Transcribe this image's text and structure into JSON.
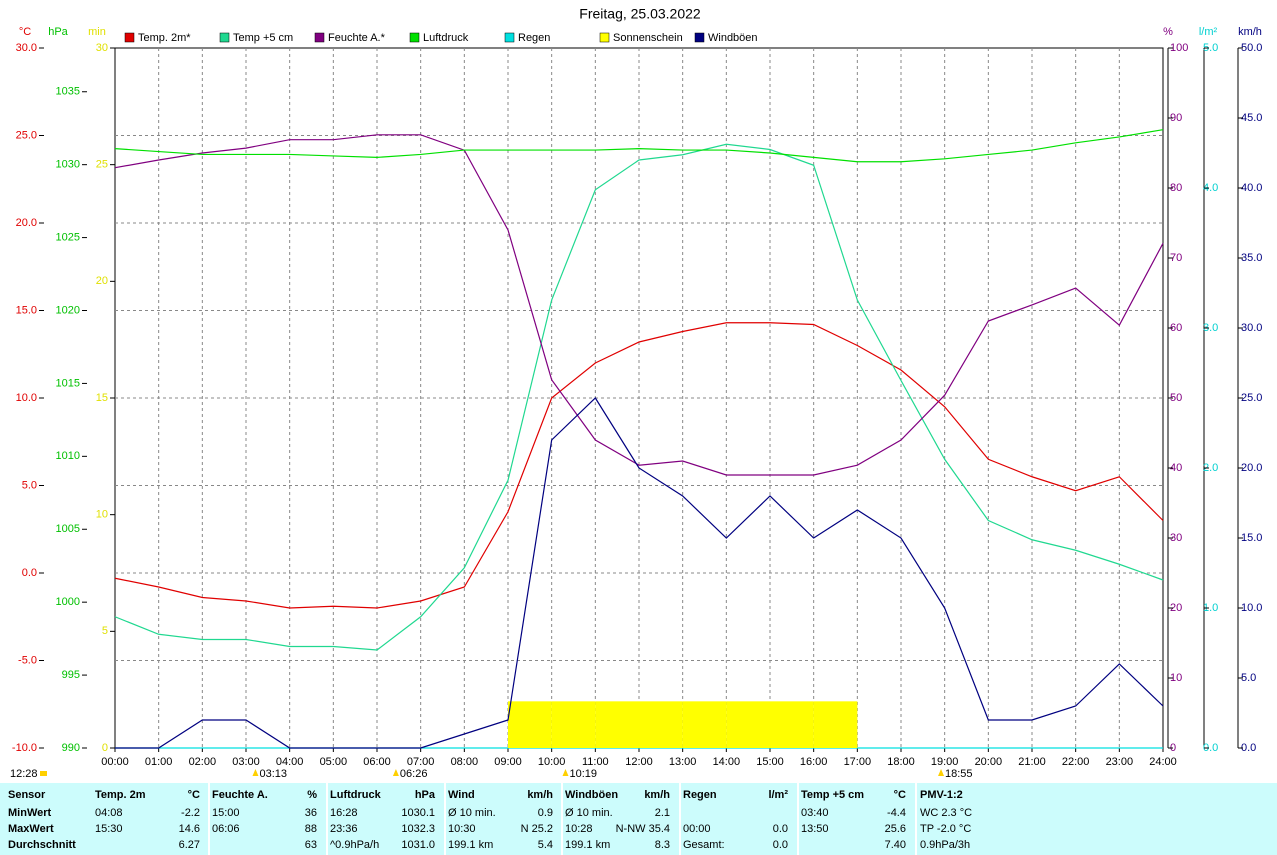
{
  "chart_data": {
    "type": "line",
    "title": "Freitag, 25.03.2022",
    "categories": [
      "00:00",
      "01:00",
      "02:00",
      "03:00",
      "04:00",
      "05:00",
      "06:00",
      "07:00",
      "08:00",
      "09:00",
      "10:00",
      "11:00",
      "12:00",
      "13:00",
      "14:00",
      "15:00",
      "16:00",
      "17:00",
      "18:00",
      "19:00",
      "20:00",
      "21:00",
      "22:00",
      "23:00",
      "24:00"
    ],
    "grid": true,
    "axes": [
      {
        "label": "°C",
        "color": "#e00000",
        "lim": [
          -10,
          30
        ],
        "ticks": [
          {
            "value": 30,
            "label": "30.0"
          },
          {
            "value": 25,
            "label": "25.0"
          },
          {
            "value": 20,
            "label": "20.0"
          },
          {
            "value": 15,
            "label": "15.0"
          },
          {
            "value": 10,
            "label": "10.0"
          },
          {
            "value": 5,
            "label": "5.0"
          },
          {
            "value": 0,
            "label": "0.0"
          },
          {
            "value": -5,
            "label": "-5.0"
          },
          {
            "value": -10,
            "label": "-10.0"
          }
        ]
      },
      {
        "label": "hPa",
        "color": "#00c000",
        "lim": [
          990,
          1038
        ],
        "ticks": [
          990,
          995,
          1000,
          1005,
          1010,
          1015,
          1020,
          1025,
          1030,
          1035
        ]
      },
      {
        "label": "min",
        "color": "#e0e000",
        "lim": [
          0,
          30
        ],
        "ticks": [
          0,
          5,
          10,
          15,
          20,
          25,
          30
        ]
      },
      {
        "label": "%",
        "color": "#800080",
        "lim": [
          0,
          100
        ],
        "ticks": [
          0,
          10,
          20,
          30,
          40,
          50,
          60,
          70,
          80,
          90,
          100
        ]
      },
      {
        "label": "l/m²",
        "color": "#00d0d0",
        "lim": [
          0,
          5
        ],
        "ticks": [
          {
            "value": 0,
            "label": "0.0"
          },
          {
            "value": 1,
            "label": "1.0"
          },
          {
            "value": 2,
            "label": "2.0"
          },
          {
            "value": 3,
            "label": "3.0"
          },
          {
            "value": 4,
            "label": "4.0"
          },
          {
            "value": 5,
            "label": "5.0"
          }
        ]
      },
      {
        "label": "km/h",
        "color": "#000080",
        "lim": [
          0,
          50
        ],
        "ticks": [
          {
            "value": 0,
            "label": "0.0"
          },
          {
            "value": 5,
            "label": "5.0"
          },
          {
            "value": 10,
            "label": "10.0"
          },
          {
            "value": 15,
            "label": "15.0"
          },
          {
            "value": 20,
            "label": "20.0"
          },
          {
            "value": 25,
            "label": "25.0"
          },
          {
            "value": 30,
            "label": "30.0"
          },
          {
            "value": 35,
            "label": "35.0"
          },
          {
            "value": 40,
            "label": "40.0"
          },
          {
            "value": 45,
            "label": "45.0"
          },
          {
            "value": 50,
            "label": "50.0"
          }
        ]
      }
    ],
    "series": [
      {
        "name": "Temp. 2m*",
        "color": "#e00000",
        "axis": 0,
        "values": [
          -0.3,
          -0.8,
          -1.4,
          -1.6,
          -2.0,
          -1.9,
          -2.0,
          -1.6,
          -0.8,
          3.5,
          10.0,
          12.0,
          13.2,
          13.8,
          14.3,
          14.3,
          14.2,
          13.0,
          11.6,
          9.5,
          6.5,
          5.5,
          4.7,
          5.5,
          3.0
        ]
      },
      {
        "name": "Temp +5 cm",
        "color": "#20d890",
        "axis": 0,
        "values": [
          -2.5,
          -3.5,
          -3.8,
          -3.8,
          -4.2,
          -4.2,
          -4.4,
          -2.5,
          0.3,
          5.3,
          15.6,
          21.9,
          23.6,
          23.9,
          24.5,
          24.2,
          23.3,
          15.6,
          11.0,
          6.5,
          3.0,
          1.9,
          1.3,
          0.5,
          -0.4
        ]
      },
      {
        "name": "Feuchte A.*",
        "color": "#800080",
        "axis": 3,
        "values": [
          82.9,
          84,
          85,
          85.7,
          86.9,
          86.9,
          87.6,
          87.6,
          85.4,
          74,
          52.6,
          44,
          40.4,
          41,
          39,
          39,
          39,
          40.4,
          44,
          50.4,
          61,
          63.3,
          65.7,
          60.4,
          72.1
        ]
      },
      {
        "name": "Luftdruck",
        "color": "#00e000",
        "axis": 1,
        "values": [
          1031.1,
          1030.9,
          1030.7,
          1030.7,
          1030.7,
          1030.6,
          1030.5,
          1030.7,
          1031.0,
          1031.0,
          1031.0,
          1031.0,
          1031.1,
          1031.0,
          1031.0,
          1030.8,
          1030.5,
          1030.2,
          1030.2,
          1030.4,
          1030.7,
          1031.0,
          1031.5,
          1031.9,
          1032.4
        ]
      },
      {
        "name": "Regen",
        "color": "#00e0e0",
        "axis": 4,
        "values": [
          0,
          0,
          0,
          0,
          0,
          0,
          0,
          0,
          0,
          0,
          0,
          0,
          0,
          0,
          0,
          0,
          0,
          0,
          0,
          0,
          0,
          0,
          0,
          0,
          0
        ]
      },
      {
        "name": "Sonnenschein",
        "color": "#ffff00",
        "axis": 2,
        "bars": true,
        "values": [
          0,
          0,
          0,
          0,
          0,
          0,
          0,
          0,
          0,
          2,
          2,
          2,
          2,
          2,
          2,
          2,
          2,
          0,
          0,
          0,
          0,
          0,
          0,
          0,
          0
        ]
      },
      {
        "name": "Windböen",
        "color": "#000080",
        "axis": 5,
        "values": [
          0,
          0,
          2,
          2,
          0,
          0,
          0,
          0,
          1,
          2,
          22,
          25,
          20,
          18,
          15,
          18,
          15,
          17,
          15,
          10,
          2,
          2,
          3,
          6,
          3
        ]
      }
    ],
    "annotations": [
      "03:13",
      "06:26",
      "10:19",
      "18:55"
    ],
    "corner_note": "12:28"
  },
  "table": {
    "header": [
      "Sensor",
      "Temp. 2m",
      "°C",
      "Feuchte A.",
      "%",
      "Luftdruck",
      "hPa",
      "Wind",
      "km/h",
      "Windböen",
      "km/h",
      "Regen",
      "l/m²",
      "Temp +5 cm",
      "°C",
      "PMV-1:2"
    ],
    "rows": [
      [
        "MinWert",
        "04:08",
        "-2.2",
        "15:00",
        "36",
        "16:28",
        "1030.1",
        "Ø 10 min.",
        "0.9",
        "Ø 10 min.",
        "2.1",
        null,
        null,
        "03:40",
        "-4.4",
        "WC 2.3 °C"
      ],
      [
        "MaxWert",
        "15:30",
        "14.6",
        "06:06",
        "88",
        "23:36",
        "1032.3",
        "10:30",
        "N 25.2",
        "10:28",
        "N-NW 35.4",
        "00:00",
        "0.0",
        "13:50",
        "25.6",
        "TP -2.0 °C"
      ],
      [
        "Durchschnitt",
        null,
        "6.27",
        null,
        "63",
        "^0.9hPa/h",
        "1031.0",
        "199.1 km",
        "5.4",
        "199.1 km",
        "8.3",
        "Gesamt:",
        "0.0",
        null,
        "7.40",
        "0.9hPa/3h"
      ]
    ]
  }
}
